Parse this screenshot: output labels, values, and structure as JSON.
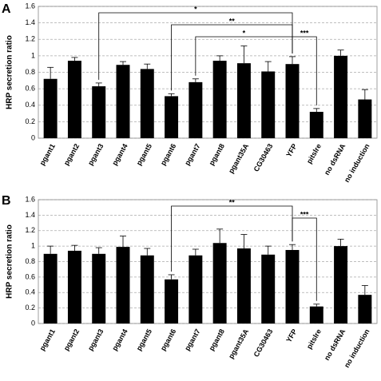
{
  "chart_data": [
    {
      "type": "bar",
      "panel": "A",
      "y_label": "HRP secretion ratio",
      "categories": [
        "pgant1",
        "pgant2",
        "pgant3",
        "pgant4",
        "pgant5",
        "pgant6",
        "pgant7",
        "pgant8",
        "pgant35A",
        "CG30463",
        "YFP",
        "pitslre",
        "no dsRNA",
        "no induction"
      ],
      "values": [
        0.72,
        0.94,
        0.63,
        0.89,
        0.84,
        0.51,
        0.68,
        0.94,
        0.91,
        0.81,
        0.9,
        0.32,
        1.0,
        0.47
      ],
      "errors": [
        0.14,
        0.04,
        0.04,
        0.04,
        0.06,
        0.03,
        0.04,
        0.06,
        0.21,
        0.12,
        0.09,
        0.04,
        0.07,
        0.12
      ],
      "color": "#000000",
      "ylim": [
        0,
        1.6
      ],
      "yticks": [
        0,
        0.2,
        0.4,
        0.6,
        0.8,
        1,
        1.2,
        1.4,
        1.6
      ],
      "grid": true,
      "annotations": [
        {
          "text": "*",
          "from": "pgant3",
          "to": "YFP"
        },
        {
          "text": "**",
          "from": "pgant6",
          "to": "YFP"
        },
        {
          "text": "*",
          "from": "pgant7",
          "to": "YFP"
        },
        {
          "text": "***",
          "from": "YFP",
          "to": "pitslre"
        }
      ]
    },
    {
      "type": "bar",
      "panel": "B",
      "y_label": "HRP secretion ratio",
      "categories": [
        "pgant1",
        "pgant2",
        "pgant3",
        "pgant4",
        "pgant5",
        "pgant6",
        "pgant7",
        "pgant8",
        "pgant35A",
        "CG30463",
        "YFP",
        "pitslre",
        "no dsRNA",
        "no induction"
      ],
      "values": [
        0.9,
        0.94,
        0.9,
        0.99,
        0.88,
        0.57,
        0.88,
        1.04,
        0.97,
        0.89,
        0.95,
        0.22,
        1.0,
        0.37
      ],
      "errors": [
        0.1,
        0.07,
        0.08,
        0.14,
        0.09,
        0.06,
        0.08,
        0.18,
        0.18,
        0.11,
        0.07,
        0.03,
        0.09,
        0.12
      ],
      "color": "#000000",
      "ylim": [
        0,
        1.6
      ],
      "yticks": [
        0,
        0.2,
        0.4,
        0.6,
        0.8,
        1,
        1.2,
        1.4,
        1.6
      ],
      "grid": true,
      "annotations": [
        {
          "text": "**",
          "from": "pgant6",
          "to": "YFP"
        },
        {
          "text": "***",
          "from": "YFP",
          "to": "pitslre"
        }
      ]
    }
  ]
}
